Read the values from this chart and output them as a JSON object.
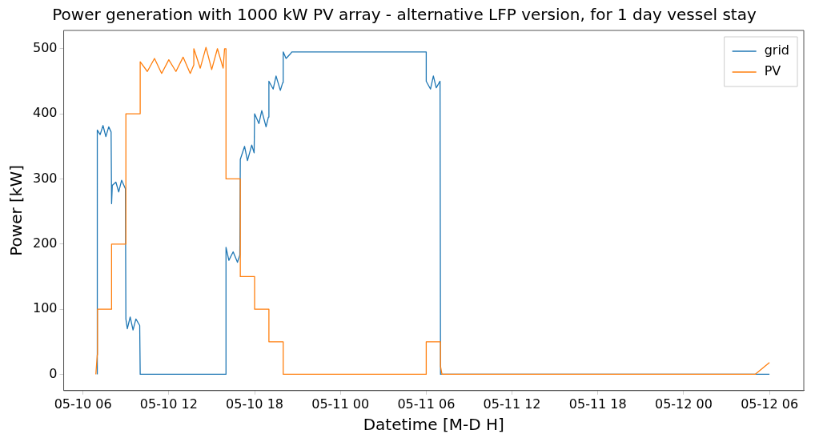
{
  "chart_data": {
    "type": "line",
    "title": "Power generation with 1000 kW PV array - alternative LFP version, for 1 day vessel stay",
    "xlabel": "Datetime [M-D H]",
    "ylabel": "Power [kW]",
    "xlim": [
      "--05-10T04:39",
      "--05-12T08:24"
    ],
    "xticks": [
      {
        "value": "--05-10T06:00",
        "label": "05-10 06"
      },
      {
        "value": "--05-10T12:00",
        "label": "05-10 12"
      },
      {
        "value": "--05-10T18:00",
        "label": "05-10 18"
      },
      {
        "value": "--05-11T00:00",
        "label": "05-11 00"
      },
      {
        "value": "--05-11T06:00",
        "label": "05-11 06"
      },
      {
        "value": "--05-11T12:00",
        "label": "05-11 12"
      },
      {
        "value": "--05-11T18:00",
        "label": "05-11 18"
      },
      {
        "value": "--05-12T00:00",
        "label": "05-12 00"
      },
      {
        "value": "--05-12T06:00",
        "label": "05-12 06"
      }
    ],
    "ylim": [
      -25,
      528
    ],
    "yticks": [
      0,
      100,
      200,
      300,
      400,
      500
    ],
    "grid": false,
    "legend": "top right",
    "marker": "none",
    "line_style": "solid",
    "series": [
      {
        "name": "grid",
        "color": "#1f77b4",
        "x": [
          "--05-10T07:00",
          "--05-10T07:00",
          "--05-10T07:12",
          "--05-10T07:24",
          "--05-10T07:36",
          "--05-10T07:48",
          "--05-10T07:58",
          "--05-10T08:00",
          "--05-10T08:03",
          "--05-10T08:18",
          "--05-10T08:30",
          "--05-10T08:42",
          "--05-10T08:58",
          "--05-10T09:00",
          "--05-10T09:06",
          "--05-10T09:18",
          "--05-10T09:30",
          "--05-10T09:42",
          "--05-10T09:58",
          "--05-10T10:00",
          "--05-10T16:00",
          "--05-10T16:00",
          "--05-10T16:12",
          "--05-10T16:30",
          "--05-10T16:48",
          "--05-10T16:58",
          "--05-10T17:00",
          "--05-10T17:18",
          "--05-10T17:30",
          "--05-10T17:48",
          "--05-10T17:58",
          "--05-10T18:00",
          "--05-10T18:18",
          "--05-10T18:30",
          "--05-10T18:48",
          "--05-10T18:58",
          "--05-10T19:00",
          "--05-10T19:18",
          "--05-10T19:30",
          "--05-10T19:48",
          "--05-10T19:58",
          "--05-10T20:00",
          "--05-10T20:12",
          "--05-10T20:30",
          "--05-10T20:36",
          "--05-11T06:00",
          "--05-11T06:00",
          "--05-11T06:18",
          "--05-11T06:30",
          "--05-11T06:42",
          "--05-11T06:58",
          "--05-11T07:00",
          "--05-12T06:00"
        ],
        "values": [
          0,
          375,
          368,
          382,
          365,
          380,
          372,
          262,
          290,
          295,
          280,
          298,
          285,
          85,
          70,
          88,
          68,
          85,
          75,
          0,
          0,
          195,
          175,
          188,
          172,
          183,
          330,
          350,
          328,
          352,
          340,
          400,
          385,
          405,
          380,
          395,
          450,
          438,
          458,
          436,
          448,
          495,
          485,
          492,
          495,
          495,
          450,
          438,
          458,
          440,
          450,
          0,
          0
        ]
      },
      {
        "name": "PV",
        "color": "#ff7f0e",
        "x": [
          "--05-10T06:54",
          "--05-10T07:00",
          "--05-10T07:01",
          "--05-10T08:00",
          "--05-10T08:00",
          "--05-10T09:00",
          "--05-10T09:00",
          "--05-10T10:00",
          "--05-10T10:00",
          "--05-10T10:30",
          "--05-10T11:00",
          "--05-10T11:30",
          "--05-10T12:00",
          "--05-10T12:30",
          "--05-10T13:00",
          "--05-10T13:30",
          "--05-10T13:45",
          "--05-10T13:45",
          "--05-10T14:12",
          "--05-10T14:36",
          "--05-10T15:00",
          "--05-10T15:24",
          "--05-10T15:48",
          "--05-10T15:54",
          "--05-10T16:00",
          "--05-10T16:00",
          "--05-10T17:00",
          "--05-10T17:00",
          "--05-10T18:00",
          "--05-10T18:00",
          "--05-10T19:00",
          "--05-10T19:00",
          "--05-10T20:00",
          "--05-10T20:00",
          "--05-11T06:00",
          "--05-11T06:00",
          "--05-11T07:00",
          "--05-11T07:00",
          "--05-11T07:06",
          "--05-12T05:00",
          "--05-12T06:00"
        ],
        "values": [
          0,
          30,
          100,
          100,
          200,
          200,
          400,
          400,
          480,
          465,
          485,
          462,
          483,
          465,
          487,
          462,
          475,
          500,
          470,
          502,
          468,
          500,
          470,
          500,
          500,
          300,
          300,
          150,
          150,
          100,
          100,
          50,
          50,
          0,
          0,
          50,
          50,
          12,
          0,
          0,
          18
        ]
      }
    ]
  }
}
